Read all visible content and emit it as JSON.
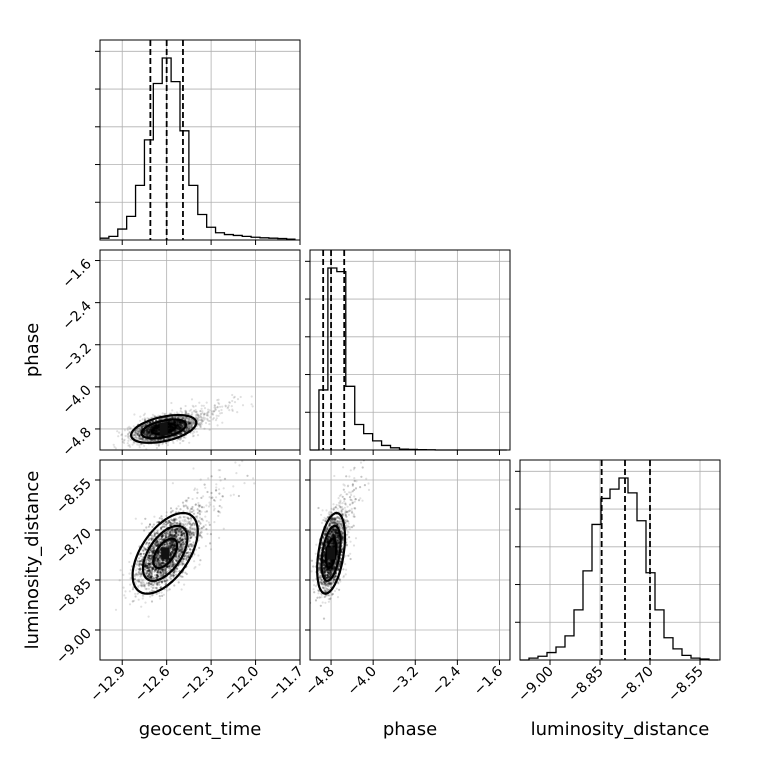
{
  "chart_data": {
    "type": "corner",
    "parameters": [
      {
        "name": "geocent_time",
        "label": "geocent_time",
        "range": [
          -13.05,
          -11.7
        ],
        "ticks": [
          -12.9,
          -12.6,
          -12.3,
          -12.0,
          -11.7
        ],
        "tick_labels": [
          "−12.9",
          "−12.6",
          "−12.3",
          "−12.0",
          "−11.7"
        ],
        "quantiles": [
          -12.71,
          -12.6,
          -12.49
        ],
        "hist_bins": [
          -13.05,
          -12.99,
          -12.93,
          -12.87,
          -12.81,
          -12.75,
          -12.69,
          -12.63,
          -12.57,
          -12.51,
          -12.45,
          -12.39,
          -12.33,
          -12.27,
          -12.21,
          -12.15,
          -12.09,
          -12.03,
          -11.97,
          -11.91,
          -11.85,
          -11.79,
          -11.73
        ],
        "hist_counts": [
          0.01,
          0.02,
          0.06,
          0.13,
          0.3,
          0.55,
          0.86,
          1.0,
          0.87,
          0.6,
          0.3,
          0.14,
          0.07,
          0.04,
          0.03,
          0.025,
          0.02,
          0.015,
          0.012,
          0.01,
          0.008,
          0.005
        ]
      },
      {
        "name": "phase",
        "label": "phase",
        "range": [
          -5.2,
          -1.4
        ],
        "ticks": [
          -4.8,
          -4.0,
          -3.2,
          -2.4,
          -1.6
        ],
        "tick_labels": [
          "−4.8",
          "−4.0",
          "−3.2",
          "−2.4",
          "−1.6"
        ],
        "quantiles": [
          -4.95,
          -4.8,
          -4.55
        ],
        "hist_bins": [
          -5.2,
          -5.03,
          -4.86,
          -4.69,
          -4.52,
          -4.35,
          -4.18,
          -4.01,
          -3.84,
          -3.67,
          -3.5,
          -3.33,
          -3.16,
          -2.99,
          -2.82,
          -2.65,
          -2.48,
          -2.31,
          -2.14,
          -1.97,
          -1.8,
          -1.63,
          -1.46
        ],
        "hist_counts": [
          0.0,
          0.33,
          1.0,
          0.98,
          0.35,
          0.14,
          0.09,
          0.05,
          0.025,
          0.012,
          0.005,
          0.003,
          0.002,
          0.001,
          0.0,
          0.0,
          0.0,
          0.0,
          0.0,
          0.0,
          0.0,
          0.0
        ]
      },
      {
        "name": "luminosity_distance",
        "label": "luminosity_distance",
        "range": [
          -9.09,
          -8.49
        ],
        "ticks": [
          -9.0,
          -8.85,
          -8.7,
          -8.55
        ],
        "tick_labels": [
          "−9.00",
          "−8.85",
          "−8.70",
          "−8.55"
        ],
        "quantiles": [
          -8.845,
          -8.775,
          -8.7
        ],
        "hist_bins": [
          -9.09,
          -9.063,
          -9.036,
          -9.009,
          -8.982,
          -8.955,
          -8.928,
          -8.901,
          -8.874,
          -8.847,
          -8.82,
          -8.793,
          -8.766,
          -8.739,
          -8.712,
          -8.685,
          -8.658,
          -8.631,
          -8.604,
          -8.577,
          -8.55,
          -8.523,
          -8.496
        ],
        "hist_counts": [
          0.0,
          0.01,
          0.02,
          0.04,
          0.07,
          0.13,
          0.27,
          0.48,
          0.73,
          0.87,
          0.92,
          0.98,
          0.9,
          0.75,
          0.47,
          0.27,
          0.12,
          0.06,
          0.025,
          0.01,
          0.005,
          0.0
        ]
      }
    ],
    "pairs": [
      {
        "x": "geocent_time",
        "y": "phase",
        "center": [
          -12.62,
          -4.8
        ],
        "spread": [
          0.1,
          0.12
        ],
        "correlation": 0.45,
        "contour_levels": [
          0.8,
          1.5,
          2.2
        ]
      },
      {
        "x": "geocent_time",
        "y": "luminosity_distance",
        "center": [
          -12.61,
          -8.77
        ],
        "spread": [
          0.1,
          0.055
        ],
        "correlation": 0.55,
        "contour_levels": [
          0.8,
          1.5,
          2.2
        ]
      },
      {
        "x": "phase",
        "y": "luminosity_distance",
        "center": [
          -4.8,
          -8.77
        ],
        "spread": [
          0.12,
          0.055
        ],
        "correlation": 0.4,
        "contour_levels": [
          0.8,
          1.5,
          2.2
        ]
      }
    ],
    "grid": true,
    "title": ""
  }
}
